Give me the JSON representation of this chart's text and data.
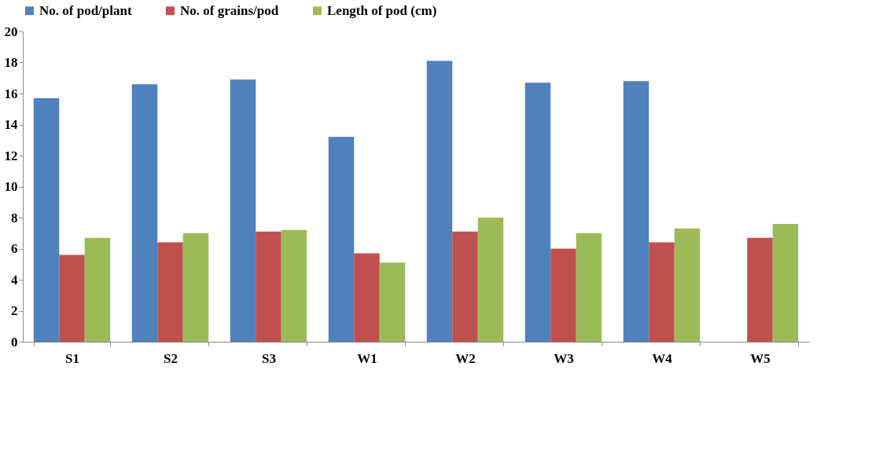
{
  "chart_data": {
    "type": "bar",
    "categories": [
      "S1",
      "S2",
      "S3",
      "W1",
      "W2",
      "W3",
      "W4",
      "W5"
    ],
    "series": [
      {
        "name": "No. of pod/plant",
        "color": "#4f81bd",
        "values": [
          15.7,
          16.6,
          16.9,
          13.2,
          18.1,
          16.7,
          16.8,
          null
        ]
      },
      {
        "name": "No. of grains/pod",
        "color": "#c0504d",
        "values": [
          5.6,
          6.4,
          7.1,
          5.7,
          7.1,
          6.0,
          6.4,
          6.7
        ]
      },
      {
        "name": "Length of pod (cm)",
        "color": "#9bbb59",
        "values": [
          6.7,
          7.0,
          7.2,
          5.1,
          8.0,
          7.0,
          7.3,
          7.6
        ]
      }
    ],
    "ylim": [
      0,
      20
    ],
    "yticks": [
      0,
      2,
      4,
      6,
      8,
      10,
      12,
      14,
      16,
      18,
      20
    ],
    "grid": false,
    "legend": "top"
  }
}
